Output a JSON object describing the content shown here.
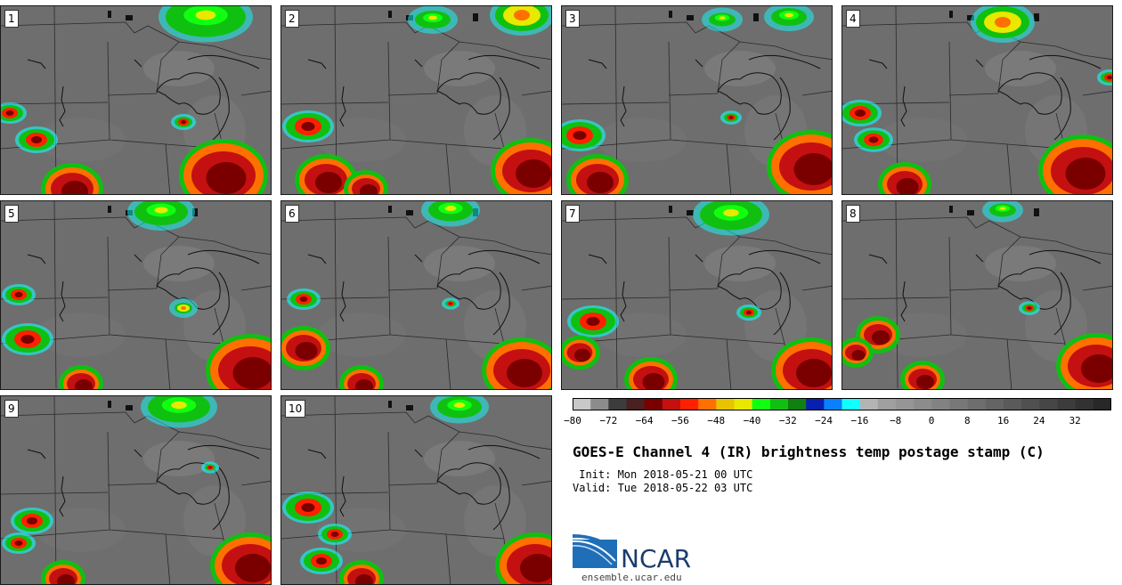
{
  "panels": [
    "1",
    "2",
    "3",
    "4",
    "5",
    "6",
    "7",
    "8",
    "9",
    "10"
  ],
  "colorbar": {
    "ticks": [
      "−80",
      "−72",
      "−64",
      "−56",
      "−48",
      "−40",
      "−32",
      "−24",
      "−16",
      "−8",
      "0",
      "8",
      "16",
      "24",
      "32"
    ],
    "colors": [
      "#c8c8c8",
      "#8c8c8c",
      "#3c3c3c",
      "#4a2020",
      "#7a0000",
      "#c41010",
      "#ff2000",
      "#ff7000",
      "#e8c400",
      "#e8e800",
      "#10ff10",
      "#10c010",
      "#108010",
      "#0820b0",
      "#0880ff",
      "#10ffff",
      "#b4b4b4",
      "#a0a0a0",
      "#969696",
      "#8c8c8c",
      "#828282",
      "#787878",
      "#6e6e6e",
      "#646464",
      "#5a5a5a",
      "#505050",
      "#464646",
      "#3c3c3c",
      "#323232",
      "#282828"
    ]
  },
  "title": "GOES-E Channel 4 (IR) brightness temp postage stamp (C)",
  "init": " Init: Mon 2018-05-21 00 UTC",
  "valid": "Valid: Tue 2018-05-22 03 UTC",
  "logo": {
    "name": "NCAR",
    "url": "ensemble.ucar.edu"
  }
}
